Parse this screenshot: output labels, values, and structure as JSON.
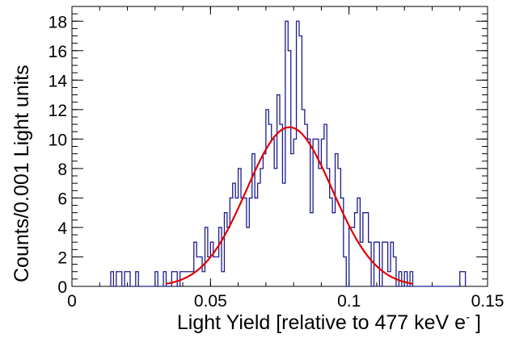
{
  "chart_data": {
    "type": "histogram",
    "xlabel": "Light Yield [relative to 477 keV e",
    "xlabel_superscript": "-",
    "xlabel_close": " ]",
    "ylabel": "Counts/0.001 Light units",
    "xlim": [
      0,
      0.15
    ],
    "ylim": [
      0,
      19
    ],
    "x_ticks": [
      0,
      0.05,
      0.1,
      0.15
    ],
    "x_tick_labels": [
      "0",
      "0.05",
      "0.1",
      "0.15"
    ],
    "y_ticks": [
      0,
      2,
      4,
      6,
      8,
      10,
      12,
      14,
      16,
      18
    ],
    "y_tick_labels": [
      "0",
      "2",
      "4",
      "6",
      "8",
      "10",
      "12",
      "14",
      "16",
      "18"
    ],
    "grid": false,
    "bin_width": 0.001,
    "bin_start": 0.014,
    "counts": [
      1,
      0,
      1,
      1,
      0,
      1,
      1,
      0,
      0,
      1,
      0,
      0,
      0,
      0,
      0,
      0,
      1,
      0,
      0,
      1,
      0,
      0,
      1,
      1,
      0,
      1,
      1,
      1,
      1,
      1,
      3,
      2,
      2,
      1,
      4,
      2,
      3,
      2,
      2,
      4,
      1,
      5,
      4,
      6,
      7,
      6,
      8,
      6,
      6,
      4,
      6,
      9,
      6,
      7,
      8,
      9,
      12,
      11,
      10,
      8,
      13,
      11,
      7,
      18,
      16,
      9,
      10,
      18,
      17,
      12,
      11,
      10,
      5,
      10,
      10,
      8,
      10,
      11,
      8,
      6,
      5,
      9,
      8,
      6,
      2,
      0,
      4,
      4,
      5,
      6,
      3,
      5,
      5,
      3,
      0,
      3,
      3,
      0,
      3,
      3,
      1,
      3,
      2,
      0,
      1,
      0,
      1,
      0,
      1,
      0,
      0,
      0,
      0,
      0,
      0,
      0,
      0,
      0,
      0,
      0,
      0,
      0,
      0,
      0,
      0,
      0,
      1,
      1
    ],
    "fit": {
      "type": "gaussian",
      "amplitude": 10.8,
      "mean": 0.0785,
      "sigma": 0.0155,
      "x_range": [
        0.034,
        0.123
      ]
    },
    "colors": {
      "histogram": "#1c1c8c",
      "fit": "#e00000",
      "axis": "#000000"
    }
  }
}
